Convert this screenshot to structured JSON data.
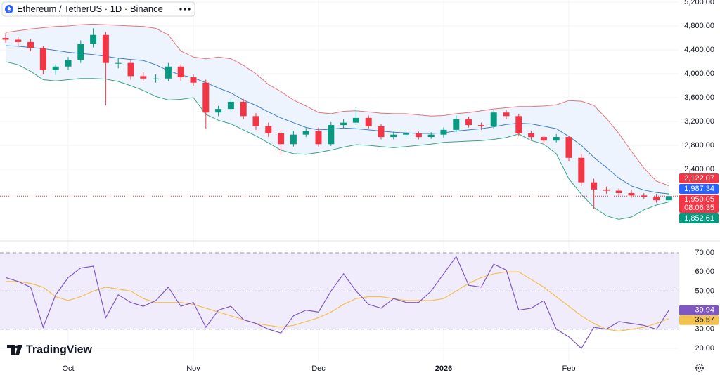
{
  "brand": "TradingView",
  "chart_data": [
    {
      "type": "candlestick",
      "title": "Ethereum / TetherUS · 1D · Binance",
      "countdown": "08:06:35",
      "up_color": "#089981",
      "down_color": "#f23645",
      "open": [
        4600,
        4570,
        4530,
        4430,
        4060,
        4120,
        4230,
        4500,
        4650,
        4180,
        4180,
        3960,
        3920,
        3920,
        4120,
        3940,
        3850,
        3350,
        3410,
        3530,
        3290,
        3120,
        3000,
        2820,
        2980,
        3040,
        2820,
        3140,
        3180,
        3260,
        3120,
        2940,
        2980,
        3000,
        2940,
        2980,
        3060,
        3240,
        3140,
        3120,
        3350,
        3290,
        3000,
        2940,
        2880,
        2940,
        2590,
        2180,
        2060,
        2040,
        2000,
        1960,
        1940,
        1880
      ],
      "high": [
        4680,
        4620,
        4580,
        4460,
        4160,
        4280,
        4560,
        4760,
        4700,
        4260,
        4230,
        4020,
        3990,
        4180,
        4160,
        3990,
        3900,
        3460,
        3590,
        3580,
        3340,
        3180,
        3060,
        3040,
        3090,
        3100,
        3190,
        3240,
        3440,
        3300,
        3160,
        3030,
        3050,
        3030,
        3020,
        3100,
        3300,
        3280,
        3180,
        3400,
        3400,
        3330,
        3050,
        2960,
        2990,
        2960,
        2650,
        2240,
        2110,
        2080,
        2050,
        2000,
        1990,
        2000
      ],
      "low": [
        4520,
        4470,
        4380,
        3990,
        3980,
        4070,
        4180,
        4440,
        3470,
        4090,
        3900,
        3870,
        3850,
        3870,
        3880,
        3800,
        3080,
        3290,
        3360,
        3240,
        3060,
        2940,
        2640,
        2780,
        2940,
        2780,
        2790,
        3090,
        3140,
        3080,
        2900,
        2900,
        2940,
        2900,
        2910,
        2930,
        3020,
        3100,
        3060,
        3080,
        3240,
        2950,
        2880,
        2830,
        2850,
        2540,
        2120,
        1730,
        1990,
        1950,
        1920,
        1900,
        1840,
        1860
      ],
      "close": [
        4570,
        4530,
        4430,
        4060,
        4120,
        4230,
        4500,
        4650,
        4180,
        4180,
        3960,
        3920,
        3920,
        4120,
        3940,
        3850,
        3350,
        3410,
        3530,
        3290,
        3120,
        3000,
        2820,
        2980,
        3040,
        2820,
        3140,
        3180,
        3260,
        3120,
        2940,
        2980,
        3000,
        2940,
        2980,
        3060,
        3240,
        3140,
        3120,
        3350,
        3290,
        3000,
        2940,
        2880,
        2940,
        2590,
        2180,
        2060,
        2040,
        2000,
        1960,
        1940,
        1880,
        1950.05
      ],
      "overlays": [
        {
          "color": "#e5737a",
          "values": [
            4690,
            4720,
            4750,
            4770,
            4790,
            4800,
            4820,
            4830,
            4820,
            4810,
            4800,
            4790,
            4760,
            4650,
            4380,
            4280,
            4250,
            4280,
            4250,
            4140,
            4000,
            3820,
            3700,
            3560,
            3460,
            3350,
            3330,
            3370,
            3380,
            3360,
            3340,
            3330,
            3330,
            3310,
            3290,
            3300,
            3330,
            3350,
            3380,
            3410,
            3430,
            3450,
            3450,
            3460,
            3480,
            3550,
            3540,
            3470,
            3250,
            3000,
            2700,
            2420,
            2200,
            2122.07
          ]
        },
        {
          "color": "#3d7fcc",
          "values": [
            4470,
            4460,
            4440,
            4420,
            4390,
            4360,
            4340,
            4320,
            4290,
            4260,
            4240,
            4220,
            4150,
            4050,
            3980,
            3930,
            3850,
            3760,
            3680,
            3560,
            3470,
            3360,
            3260,
            3180,
            3100,
            3060,
            3070,
            3090,
            3080,
            3060,
            3040,
            3020,
            3010,
            3000,
            3000,
            3010,
            3040,
            3060,
            3080,
            3110,
            3150,
            3170,
            3160,
            3120,
            3080,
            2950,
            2800,
            2600,
            2430,
            2250,
            2120,
            2050,
            2010,
            1987.34
          ]
        },
        {
          "color": "#3aa384",
          "values": [
            4200,
            4150,
            4040,
            3900,
            3880,
            3900,
            3920,
            3920,
            3910,
            3870,
            3800,
            3720,
            3620,
            3560,
            3570,
            3600,
            3320,
            3220,
            3160,
            3060,
            2960,
            2840,
            2720,
            2660,
            2650,
            2680,
            2720,
            2770,
            2810,
            2800,
            2780,
            2760,
            2780,
            2800,
            2820,
            2850,
            2860,
            2870,
            2880,
            2900,
            2930,
            2990,
            2880,
            2820,
            2660,
            2240,
            1980,
            1760,
            1620,
            1560,
            1600,
            1720,
            1800,
            1852.61
          ]
        }
      ],
      "band_fill": "#eef4fd",
      "ylim": [
        1235,
        5235
      ],
      "yticks": [
        {
          "value": 2400,
          "label": "2,400.00"
        },
        {
          "value": 2800,
          "label": "2,800.00"
        },
        {
          "value": 3200,
          "label": "3,200.00"
        },
        {
          "value": 3600,
          "label": "3,600.00"
        },
        {
          "value": 4000,
          "label": "4,000.00"
        },
        {
          "value": 4400,
          "label": "4,400.00"
        },
        {
          "value": 4800,
          "label": "4,800.00"
        },
        {
          "value": 5200,
          "label": "5,200.00"
        }
      ],
      "last_labels": [
        {
          "value": 2122.07,
          "label": "2,122.07",
          "color": "#f23645"
        },
        {
          "value": 1987.34,
          "label": "1,987.34",
          "color": "#2962ff"
        },
        {
          "value": 1950.05,
          "label": "1,950.05",
          "color": "#f23645"
        },
        {
          "value": 1852.61,
          "label": "1,852.61",
          "color": "#089981"
        }
      ],
      "grid": true
    },
    {
      "type": "line",
      "categories": [
        null,
        null,
        null,
        null,
        null,
        "Oct",
        null,
        null,
        null,
        null,
        null,
        null,
        null,
        null,
        null,
        "Nov",
        null,
        null,
        null,
        null,
        null,
        null,
        null,
        null,
        null,
        "Dec",
        null,
        null,
        null,
        null,
        null,
        null,
        null,
        null,
        null,
        "2026",
        null,
        null,
        null,
        null,
        null,
        null,
        null,
        null,
        null,
        "Feb",
        null,
        null,
        null,
        null,
        null,
        null,
        null,
        null
      ],
      "series": [
        {
          "color": "#7e57c2",
          "values": [
            57,
            55,
            52,
            31,
            48,
            57,
            62,
            63,
            36,
            48,
            44,
            42,
            45,
            52,
            42,
            44,
            31,
            40,
            42,
            35,
            33,
            30,
            28,
            37,
            40,
            39,
            50,
            59,
            50,
            43,
            41,
            46,
            44,
            44,
            50,
            59,
            68,
            53,
            52,
            64,
            61,
            40,
            41,
            45,
            30,
            26,
            20,
            31,
            30,
            34,
            33,
            32,
            30,
            39.94
          ]
        },
        {
          "color": "#f2c14e",
          "values": [
            55,
            55,
            54,
            52,
            47,
            45,
            47,
            50,
            52,
            51,
            50,
            46,
            44,
            44,
            44,
            43,
            41,
            39,
            37,
            35,
            33,
            32,
            31,
            32,
            34,
            36,
            39,
            43,
            46,
            47,
            47,
            46,
            45,
            45,
            45,
            46,
            50,
            54,
            57,
            59,
            60,
            60,
            56,
            52,
            47,
            42,
            37,
            33,
            30,
            29,
            30,
            31,
            33,
            35.57
          ]
        }
      ],
      "band": [
        30,
        70
      ],
      "midline": 50,
      "band_fill": "#f1ecfb",
      "ylim": [
        13,
        75.5
      ],
      "yticks": [
        {
          "value": 20,
          "label": "20.00"
        },
        {
          "value": 30,
          "label": "30.00"
        },
        {
          "value": 40,
          "label": "40.00"
        },
        {
          "value": 50,
          "label": "50.00"
        },
        {
          "value": 60,
          "label": "60.00"
        },
        {
          "value": 70,
          "label": "70.00"
        }
      ],
      "last_labels": [
        {
          "value": 39.94,
          "label": "39.94",
          "color": "#7e57c2"
        },
        {
          "value": 35.57,
          "label": "35.57",
          "color": "#f2c14e"
        }
      ],
      "grid": true
    }
  ]
}
